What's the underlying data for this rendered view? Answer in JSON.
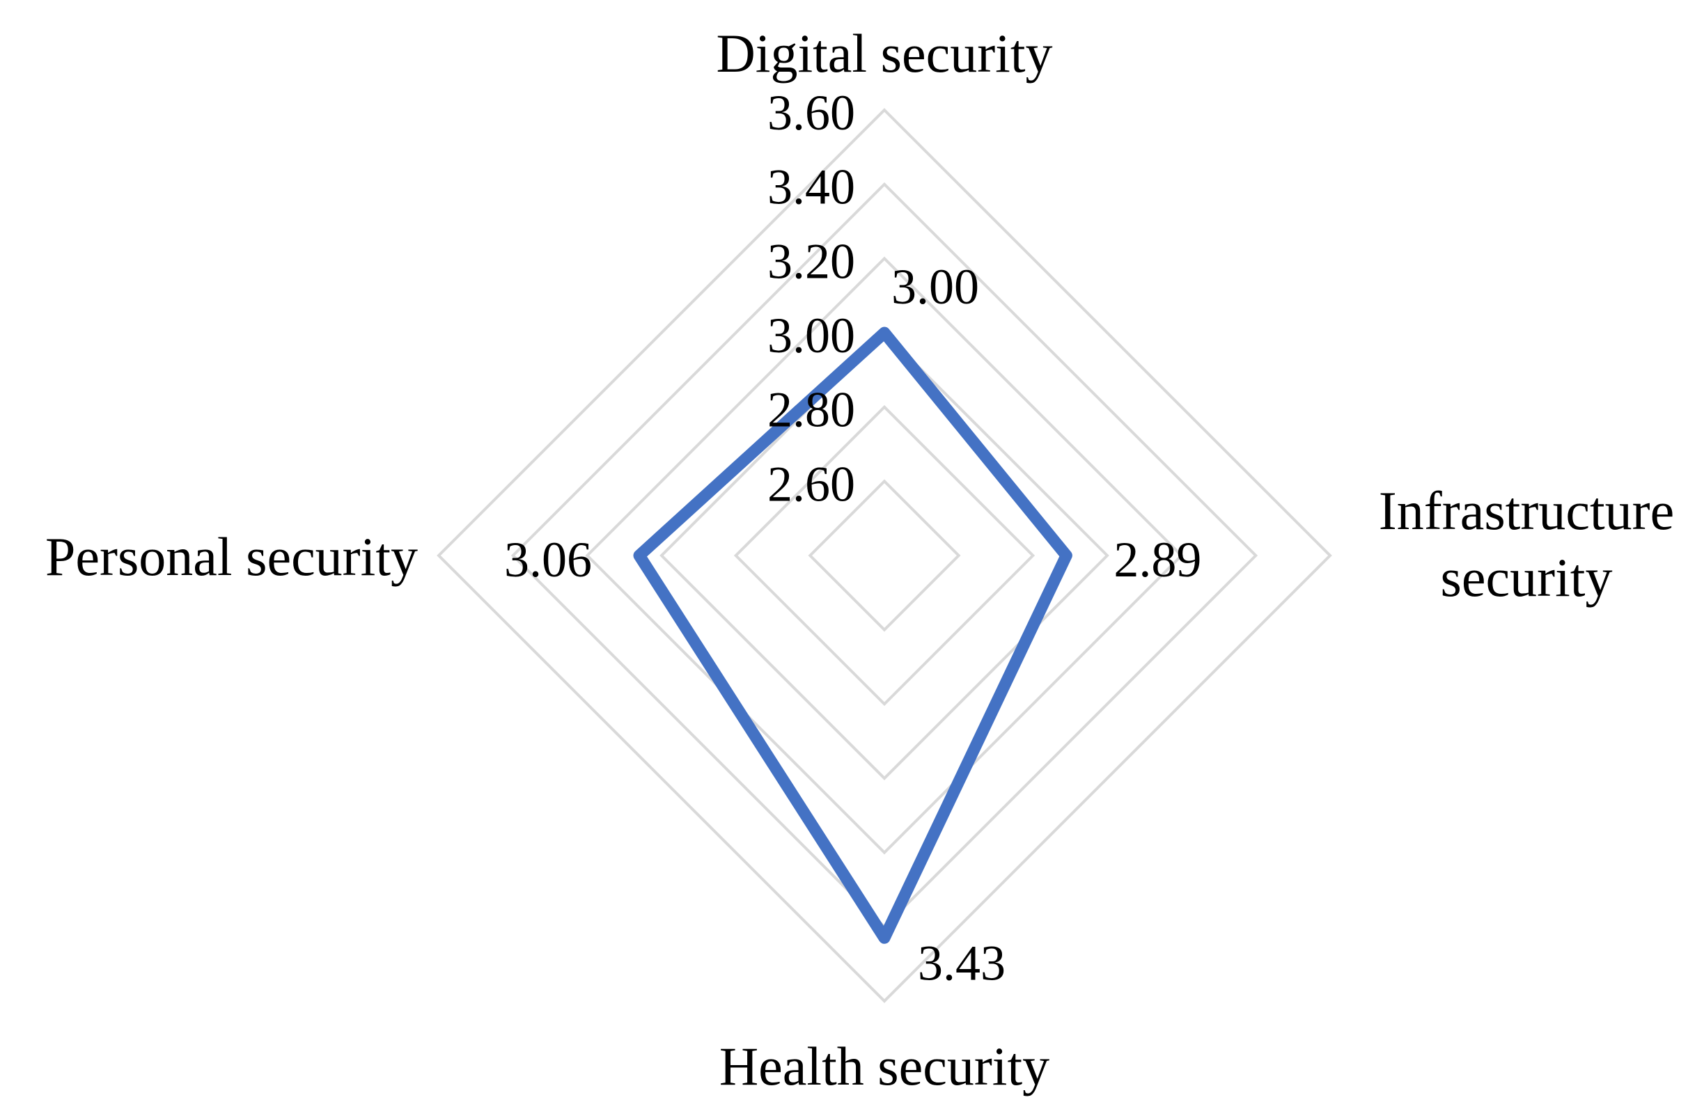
{
  "chart_data": {
    "type": "radar",
    "title": "",
    "categories": [
      {
        "lines": [
          "Digital security"
        ]
      },
      {
        "lines": [
          "Infrastructure",
          "security"
        ]
      },
      {
        "lines": [
          "Health security"
        ]
      },
      {
        "lines": [
          "Personal security"
        ]
      }
    ],
    "axis": {
      "min": 2.4,
      "max": 3.6,
      "ticks": [
        2.6,
        2.8,
        3.0,
        3.2,
        3.4,
        3.6
      ],
      "tick_labels": [
        "2.60",
        "2.80",
        "3.00",
        "3.20",
        "3.40",
        "3.60"
      ],
      "grid": true
    },
    "series": [
      {
        "values": [
          3.0,
          2.89,
          3.43,
          3.06
        ],
        "data_labels": [
          "3.00",
          "2.89",
          "3.43",
          "3.06"
        ],
        "color": "#4472C4"
      }
    ],
    "legend": "none"
  },
  "colors": {
    "series": "#4472C4",
    "grid": "#D9D9D9",
    "text": "#000000"
  }
}
